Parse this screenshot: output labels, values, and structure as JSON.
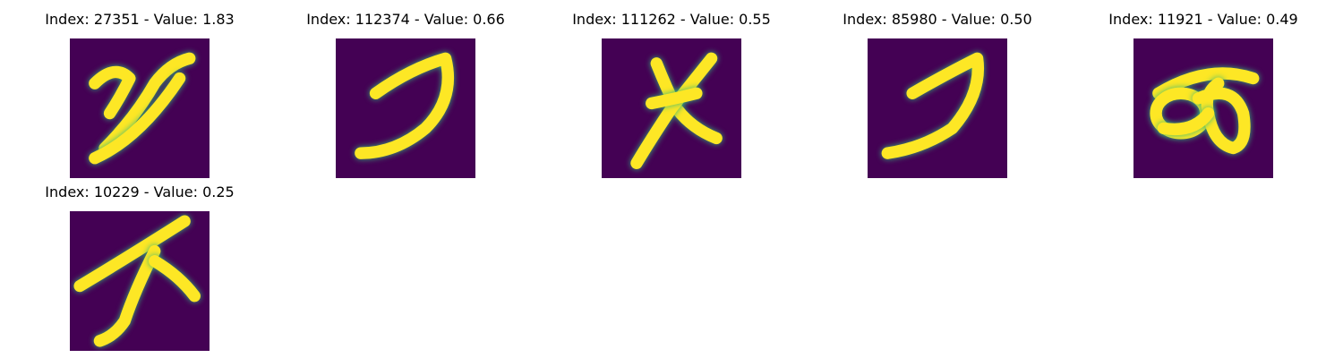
{
  "colors": {
    "background": "#440154",
    "stroke": "#fde725",
    "edge": "#35b779"
  },
  "panels": [
    {
      "title": "Index: 27351 - Value: 1.83",
      "glyph": "stroke-curl"
    },
    {
      "title": "Index: 112374 - Value: 0.66",
      "glyph": "hook-curve"
    },
    {
      "title": "Index: 111262 - Value: 0.55",
      "glyph": "cross-x"
    },
    {
      "title": "Index: 85980 - Value: 0.50",
      "glyph": "hook-curve"
    },
    {
      "title": "Index: 11921 - Value: 0.49",
      "glyph": "loops"
    },
    {
      "title": "Index: 10229 - Value: 0.25",
      "glyph": "branch"
    }
  ]
}
